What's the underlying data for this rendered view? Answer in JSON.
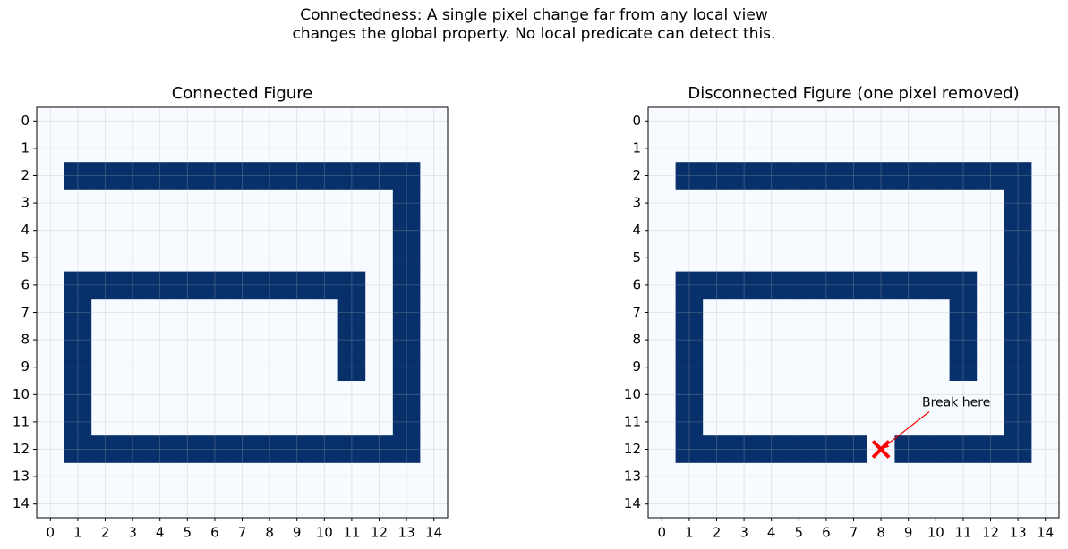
{
  "title": "Connectedness: A single pixel change far from any local view\nchanges the global property. No local predicate can detect this.",
  "chart_data": [
    {
      "type": "heatmap",
      "title": "Connected Figure",
      "colors": [
        "#f7fbff",
        "#08306b"
      ],
      "z": [
        [
          0,
          0,
          0,
          0,
          0,
          0,
          0,
          0,
          0,
          0,
          0,
          0,
          0,
          0,
          0
        ],
        [
          0,
          0,
          0,
          0,
          0,
          0,
          0,
          0,
          0,
          0,
          0,
          0,
          0,
          0,
          0
        ],
        [
          0,
          1,
          1,
          1,
          1,
          1,
          1,
          1,
          1,
          1,
          1,
          1,
          1,
          1,
          0
        ],
        [
          0,
          0,
          0,
          0,
          0,
          0,
          0,
          0,
          0,
          0,
          0,
          0,
          0,
          1,
          0
        ],
        [
          0,
          0,
          0,
          0,
          0,
          0,
          0,
          0,
          0,
          0,
          0,
          0,
          0,
          1,
          0
        ],
        [
          0,
          0,
          0,
          0,
          0,
          0,
          0,
          0,
          0,
          0,
          0,
          0,
          0,
          1,
          0
        ],
        [
          0,
          1,
          1,
          1,
          1,
          1,
          1,
          1,
          1,
          1,
          1,
          1,
          0,
          1,
          0
        ],
        [
          0,
          1,
          0,
          0,
          0,
          0,
          0,
          0,
          0,
          0,
          0,
          1,
          0,
          1,
          0
        ],
        [
          0,
          1,
          0,
          0,
          0,
          0,
          0,
          0,
          0,
          0,
          0,
          1,
          0,
          1,
          0
        ],
        [
          0,
          1,
          0,
          0,
          0,
          0,
          0,
          0,
          0,
          0,
          0,
          1,
          0,
          1,
          0
        ],
        [
          0,
          1,
          0,
          0,
          0,
          0,
          0,
          0,
          0,
          0,
          0,
          0,
          0,
          1,
          0
        ],
        [
          0,
          1,
          0,
          0,
          0,
          0,
          0,
          0,
          0,
          0,
          0,
          0,
          0,
          1,
          0
        ],
        [
          0,
          1,
          1,
          1,
          1,
          1,
          1,
          1,
          1,
          1,
          1,
          1,
          1,
          1,
          0
        ],
        [
          0,
          0,
          0,
          0,
          0,
          0,
          0,
          0,
          0,
          0,
          0,
          0,
          0,
          0,
          0
        ],
        [
          0,
          0,
          0,
          0,
          0,
          0,
          0,
          0,
          0,
          0,
          0,
          0,
          0,
          0,
          0
        ]
      ],
      "xlim": [
        -0.5,
        14.5
      ],
      "ylim": [
        14.5,
        -0.5
      ],
      "xticks": [
        0,
        1,
        2,
        3,
        4,
        5,
        6,
        7,
        8,
        9,
        10,
        11,
        12,
        13,
        14
      ],
      "yticks": [
        0,
        1,
        2,
        3,
        4,
        5,
        6,
        7,
        8,
        9,
        10,
        11,
        12,
        13,
        14
      ],
      "grid": true
    },
    {
      "type": "heatmap",
      "title": "Disconnected Figure (one pixel removed)",
      "colors": [
        "#f7fbff",
        "#08306b"
      ],
      "z": [
        [
          0,
          0,
          0,
          0,
          0,
          0,
          0,
          0,
          0,
          0,
          0,
          0,
          0,
          0,
          0
        ],
        [
          0,
          0,
          0,
          0,
          0,
          0,
          0,
          0,
          0,
          0,
          0,
          0,
          0,
          0,
          0
        ],
        [
          0,
          1,
          1,
          1,
          1,
          1,
          1,
          1,
          1,
          1,
          1,
          1,
          1,
          1,
          0
        ],
        [
          0,
          0,
          0,
          0,
          0,
          0,
          0,
          0,
          0,
          0,
          0,
          0,
          0,
          1,
          0
        ],
        [
          0,
          0,
          0,
          0,
          0,
          0,
          0,
          0,
          0,
          0,
          0,
          0,
          0,
          1,
          0
        ],
        [
          0,
          0,
          0,
          0,
          0,
          0,
          0,
          0,
          0,
          0,
          0,
          0,
          0,
          1,
          0
        ],
        [
          0,
          1,
          1,
          1,
          1,
          1,
          1,
          1,
          1,
          1,
          1,
          1,
          0,
          1,
          0
        ],
        [
          0,
          1,
          0,
          0,
          0,
          0,
          0,
          0,
          0,
          0,
          0,
          1,
          0,
          1,
          0
        ],
        [
          0,
          1,
          0,
          0,
          0,
          0,
          0,
          0,
          0,
          0,
          0,
          1,
          0,
          1,
          0
        ],
        [
          0,
          1,
          0,
          0,
          0,
          0,
          0,
          0,
          0,
          0,
          0,
          1,
          0,
          1,
          0
        ],
        [
          0,
          1,
          0,
          0,
          0,
          0,
          0,
          0,
          0,
          0,
          0,
          0,
          0,
          1,
          0
        ],
        [
          0,
          1,
          0,
          0,
          0,
          0,
          0,
          0,
          0,
          0,
          0,
          0,
          0,
          1,
          0
        ],
        [
          0,
          1,
          1,
          1,
          1,
          1,
          1,
          1,
          0,
          1,
          1,
          1,
          1,
          1,
          0
        ],
        [
          0,
          0,
          0,
          0,
          0,
          0,
          0,
          0,
          0,
          0,
          0,
          0,
          0,
          0,
          0
        ],
        [
          0,
          0,
          0,
          0,
          0,
          0,
          0,
          0,
          0,
          0,
          0,
          0,
          0,
          0,
          0
        ]
      ],
      "xlim": [
        -0.5,
        14.5
      ],
      "ylim": [
        14.5,
        -0.5
      ],
      "xticks": [
        0,
        1,
        2,
        3,
        4,
        5,
        6,
        7,
        8,
        9,
        10,
        11,
        12,
        13,
        14
      ],
      "yticks": [
        0,
        1,
        2,
        3,
        4,
        5,
        6,
        7,
        8,
        9,
        10,
        11,
        12,
        13,
        14
      ],
      "grid": true,
      "marker": {
        "x": 8,
        "y": 12,
        "color": "#ff0000"
      },
      "annotation": {
        "text": "Break here",
        "x": 9.5,
        "y": 10.3,
        "color": "#ff0000"
      }
    }
  ]
}
